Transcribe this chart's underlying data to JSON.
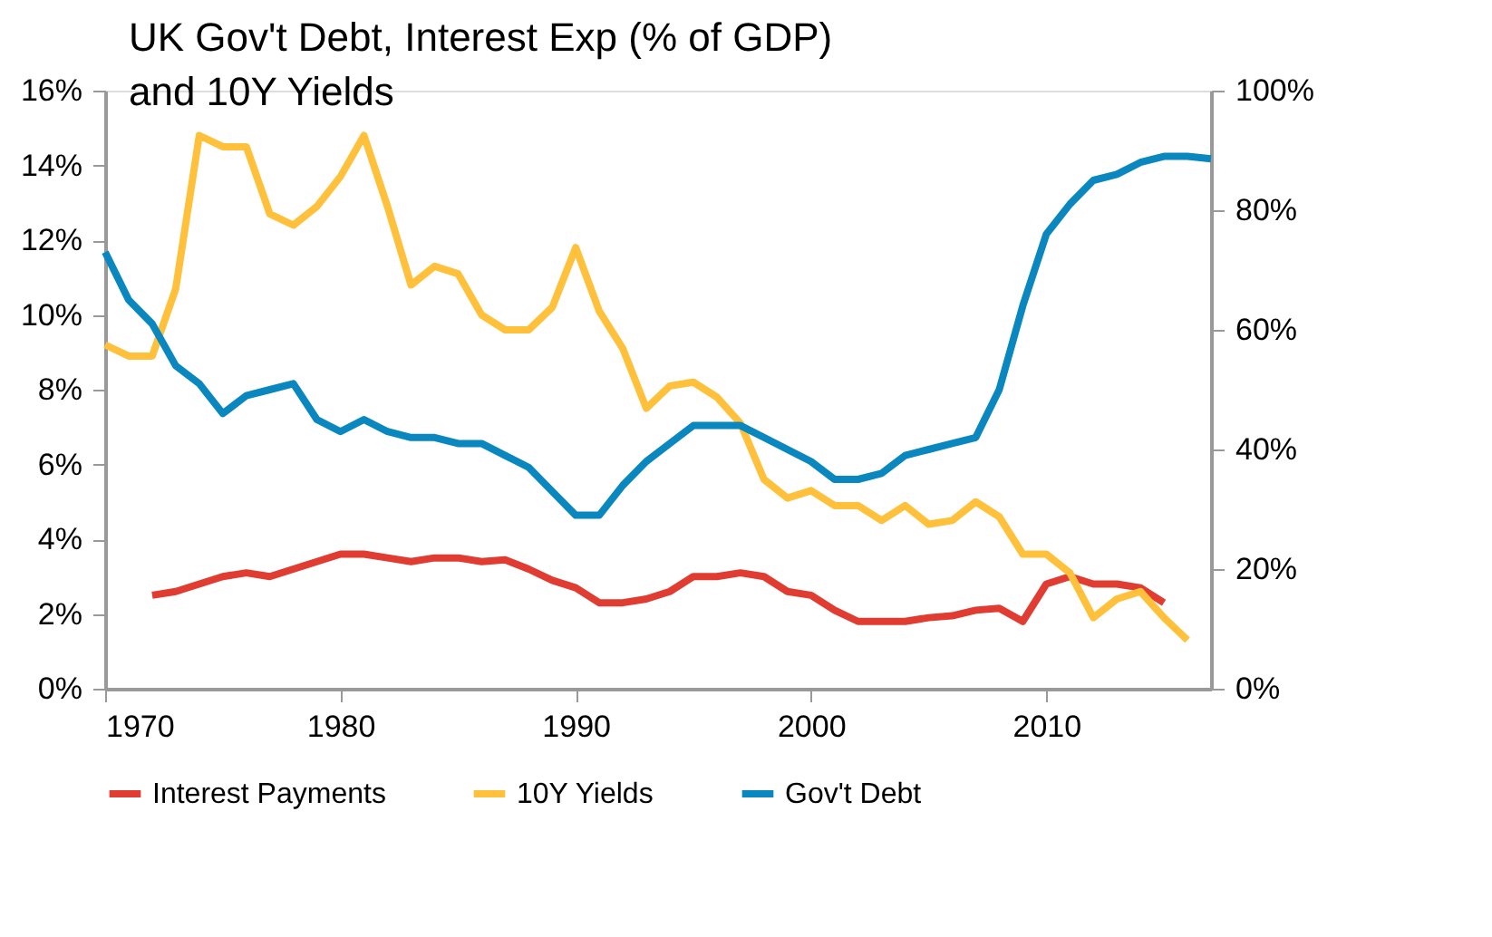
{
  "chart_data": {
    "type": "line",
    "title": "UK Gov't Debt, Interest Exp (% of GDP) and 10Y Yields",
    "series": [
      {
        "name": "Interest Payments",
        "color": "#e03c31",
        "x": [
          1972,
          1973,
          1974,
          1975,
          1976,
          1977,
          1978,
          1979,
          1980,
          1981,
          1982,
          1983,
          1984,
          1985,
          1986,
          1987,
          1988,
          1989,
          1990,
          1991,
          1992,
          1993,
          1994,
          1995,
          1996,
          1997,
          1998,
          1999,
          2000,
          2001,
          2002,
          2003,
          2004,
          2005,
          2006,
          2007,
          2008,
          2009,
          2010,
          2011,
          2012,
          2013,
          2014,
          2015
        ],
        "values": [
          2.5,
          2.6,
          2.8,
          3.0,
          3.1,
          3.0,
          3.2,
          3.4,
          3.6,
          3.6,
          3.5,
          3.4,
          3.5,
          3.5,
          3.4,
          3.45,
          3.2,
          2.9,
          2.7,
          2.3,
          2.3,
          2.4,
          2.6,
          3.0,
          3.0,
          3.1,
          3.0,
          2.6,
          2.5,
          2.1,
          1.8,
          1.8,
          1.8,
          1.9,
          1.95,
          2.1,
          2.15,
          1.8,
          2.8,
          3.0,
          2.8,
          2.8,
          2.7,
          2.3
        ]
      },
      {
        "name": "10Y Yields",
        "color": "#ffc13b",
        "x": [
          1970,
          1971,
          1972,
          1973,
          1974,
          1975,
          1976,
          1977,
          1978,
          1979,
          1980,
          1981,
          1982,
          1983,
          1984,
          1985,
          1986,
          1987,
          1988,
          1989,
          1990,
          1991,
          1992,
          1993,
          1994,
          1995,
          1996,
          1997,
          1998,
          1999,
          2000,
          2001,
          2002,
          2003,
          2004,
          2005,
          2006,
          2007,
          2008,
          2009,
          2010,
          2011,
          2012,
          2013,
          2014,
          2015,
          2016
        ],
        "values": [
          9.2,
          8.9,
          8.9,
          10.7,
          14.8,
          14.5,
          14.5,
          12.7,
          12.4,
          12.9,
          13.7,
          14.8,
          12.9,
          10.8,
          11.3,
          11.1,
          10.0,
          9.6,
          9.6,
          10.2,
          11.8,
          10.1,
          9.1,
          7.5,
          8.1,
          8.2,
          7.8,
          7.1,
          5.6,
          5.1,
          5.3,
          4.9,
          4.9,
          4.5,
          4.9,
          4.4,
          4.5,
          5.0,
          4.6,
          3.6,
          3.6,
          3.1,
          1.9,
          2.4,
          2.6,
          1.9,
          1.3
        ]
      },
      {
        "name": "Gov't Debt",
        "color": "#0a87be",
        "axis": "y2",
        "x": [
          1970,
          1971,
          1972,
          1973,
          1974,
          1975,
          1976,
          1977,
          1978,
          1979,
          1980,
          1981,
          1982,
          1983,
          1984,
          1985,
          1986,
          1987,
          1988,
          1989,
          1990,
          1991,
          1992,
          1993,
          1994,
          1995,
          1996,
          1997,
          1998,
          1999,
          2000,
          2001,
          2002,
          2003,
          2004,
          2005,
          2006,
          2007,
          2008,
          2009,
          2010,
          2011,
          2012,
          2013,
          2014,
          2015,
          2016,
          2017
        ],
        "values": [
          73,
          65,
          61,
          54,
          51,
          46,
          49,
          50,
          51,
          45,
          43,
          45,
          43,
          42,
          42,
          41,
          41,
          39,
          37,
          33,
          29,
          29,
          34,
          38,
          41,
          44,
          44,
          44,
          42,
          40,
          38,
          35,
          35,
          36,
          39,
          40,
          41,
          42,
          50,
          64,
          76,
          81,
          85,
          86,
          88,
          89,
          89,
          88.6
        ]
      }
    ],
    "xlim": [
      1970,
      2017
    ],
    "xticks": [
      1970,
      1980,
      1990,
      2000,
      2010
    ],
    "ylim": [
      0,
      16
    ],
    "yticks": [
      {
        "value": 0,
        "label": "0%"
      },
      {
        "value": 2,
        "label": "2%"
      },
      {
        "value": 4,
        "label": "4%"
      },
      {
        "value": 6,
        "label": "6%"
      },
      {
        "value": 8,
        "label": "8%"
      },
      {
        "value": 10,
        "label": "10%"
      },
      {
        "value": 12,
        "label": "12%"
      },
      {
        "value": 14,
        "label": "14%"
      },
      {
        "value": 16,
        "label": "16%"
      }
    ],
    "y2lim": [
      0,
      100
    ],
    "y2ticks": [
      {
        "value": 0,
        "label": "0%"
      },
      {
        "value": 20,
        "label": "20%"
      },
      {
        "value": 40,
        "label": "40%"
      },
      {
        "value": 60,
        "label": "60%"
      },
      {
        "value": 80,
        "label": "80%"
      },
      {
        "value": 100,
        "label": "100%"
      }
    ],
    "grid": false,
    "legend": "bottom",
    "marker": "none",
    "line_style": "solid"
  }
}
